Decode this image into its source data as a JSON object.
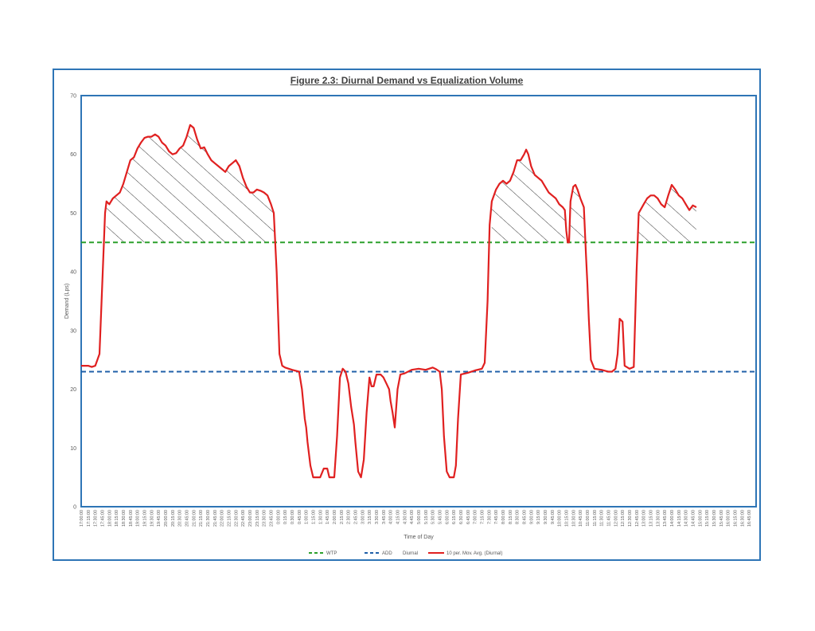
{
  "chart_data": {
    "type": "line",
    "title": "Figure 2.3: Diurnal Demand vs Equalization Volume",
    "xlabel": "Time of Day",
    "ylabel": "Demand (Lps)",
    "ylim": [
      0,
      70
    ],
    "yticks": [
      0,
      10,
      20,
      30,
      40,
      50,
      60,
      70
    ],
    "grid": false,
    "legend_position": "bottom",
    "x_start": "17:00:00",
    "x_step_minutes": 15,
    "x_count": 96,
    "legend": [
      {
        "key": "wtp",
        "label": "WTP",
        "style": "dashed",
        "color": "#2ca02c"
      },
      {
        "key": "add",
        "label": "ADD",
        "style": "dashed",
        "color": "#2060a8"
      },
      {
        "key": "diurnal",
        "label": "Diurnal",
        "style": "hatch",
        "color": "#000000"
      },
      {
        "key": "avg",
        "label": "10 per. Mov. Avg. (Diurnal)",
        "style": "solid",
        "color": "#e02020"
      }
    ],
    "series": [
      {
        "name": "WTP",
        "constant": 45
      },
      {
        "name": "ADD",
        "constant": 23
      },
      {
        "name": "10 per. Mov. Avg. (Diurnal)",
        "points": [
          [
            0,
            24
          ],
          [
            1,
            24
          ],
          [
            1.5,
            23.8
          ],
          [
            2,
            24
          ],
          [
            2.6,
            26
          ],
          [
            3,
            38
          ],
          [
            3.4,
            50
          ],
          [
            3.6,
            52
          ],
          [
            4,
            51.5
          ],
          [
            4.5,
            52.5
          ],
          [
            5,
            53
          ],
          [
            5.5,
            53.5
          ],
          [
            6,
            55
          ],
          [
            6.5,
            57
          ],
          [
            7,
            59
          ],
          [
            7.5,
            59.5
          ],
          [
            8,
            61
          ],
          [
            8.5,
            62
          ],
          [
            9,
            62.8
          ],
          [
            9.5,
            63
          ],
          [
            10,
            63
          ],
          [
            10.5,
            63.4
          ],
          [
            11,
            63
          ],
          [
            11.5,
            62
          ],
          [
            12,
            61.5
          ],
          [
            12.5,
            60.5
          ],
          [
            13,
            60
          ],
          [
            13.5,
            60.2
          ],
          [
            14,
            61
          ],
          [
            14.5,
            61.5
          ],
          [
            15,
            63
          ],
          [
            15.5,
            65
          ],
          [
            16,
            64.5
          ],
          [
            16.5,
            62.5
          ],
          [
            17,
            61
          ],
          [
            17.5,
            61.2
          ],
          [
            18,
            60
          ],
          [
            18.5,
            59
          ],
          [
            19,
            58.5
          ],
          [
            19.5,
            58
          ],
          [
            20,
            57.5
          ],
          [
            20.5,
            57
          ],
          [
            21,
            58
          ],
          [
            21.5,
            58.5
          ],
          [
            22,
            59
          ],
          [
            22.5,
            58
          ],
          [
            23,
            56
          ],
          [
            23.5,
            54.5
          ],
          [
            24,
            53.5
          ],
          [
            24.5,
            53.5
          ],
          [
            25,
            54
          ],
          [
            25.5,
            53.8
          ],
          [
            26,
            53.5
          ],
          [
            26.5,
            53
          ],
          [
            27,
            51.5
          ],
          [
            27.4,
            50
          ],
          [
            27.8,
            40
          ],
          [
            28.2,
            26
          ],
          [
            28.6,
            24
          ],
          [
            29,
            23.7
          ],
          [
            30,
            23.3
          ],
          [
            31,
            23
          ],
          [
            31.4,
            20
          ],
          [
            31.8,
            15
          ],
          [
            32,
            13.5
          ],
          [
            32.2,
            11
          ],
          [
            32.6,
            7
          ],
          [
            33,
            5
          ],
          [
            34,
            5
          ],
          [
            34.5,
            6.5
          ],
          [
            35,
            6.5
          ],
          [
            35.3,
            5
          ],
          [
            36,
            5
          ],
          [
            36.4,
            12
          ],
          [
            36.8,
            22
          ],
          [
            37.2,
            23.5
          ],
          [
            37.6,
            23
          ],
          [
            38,
            21
          ],
          [
            38.4,
            17
          ],
          [
            38.8,
            14
          ],
          [
            39,
            11
          ],
          [
            39.4,
            6
          ],
          [
            39.8,
            5
          ],
          [
            40.2,
            8
          ],
          [
            40.6,
            16
          ],
          [
            41,
            22
          ],
          [
            41.3,
            20.5
          ],
          [
            41.6,
            20.5
          ],
          [
            42,
            22.5
          ],
          [
            42.6,
            22.5
          ],
          [
            43,
            22
          ],
          [
            43.4,
            21
          ],
          [
            43.8,
            20
          ],
          [
            44,
            18
          ],
          [
            44.3,
            16
          ],
          [
            44.6,
            13.5
          ],
          [
            45,
            20
          ],
          [
            45.4,
            22.5
          ],
          [
            46,
            22.7
          ],
          [
            47,
            23.3
          ],
          [
            48,
            23.5
          ],
          [
            49,
            23.3
          ],
          [
            50,
            23.7
          ],
          [
            50.5,
            23.4
          ],
          [
            51,
            23
          ],
          [
            51.3,
            20
          ],
          [
            51.6,
            12
          ],
          [
            52,
            6
          ],
          [
            52.4,
            5
          ],
          [
            53,
            5
          ],
          [
            53.3,
            7
          ],
          [
            53.6,
            15
          ],
          [
            54,
            22.5
          ],
          [
            55,
            22.8
          ],
          [
            56,
            23.2
          ],
          [
            57,
            23.5
          ],
          [
            57.4,
            24.5
          ],
          [
            57.8,
            35
          ],
          [
            58.1,
            48
          ],
          [
            58.4,
            52
          ],
          [
            59,
            54
          ],
          [
            59.5,
            55
          ],
          [
            60,
            55.5
          ],
          [
            60.5,
            55
          ],
          [
            61,
            55.5
          ],
          [
            61.5,
            57
          ],
          [
            62,
            59
          ],
          [
            62.5,
            59
          ],
          [
            63,
            60
          ],
          [
            63.3,
            60.8
          ],
          [
            63.6,
            60
          ],
          [
            64,
            58
          ],
          [
            64.5,
            56.5
          ],
          [
            65,
            56
          ],
          [
            65.5,
            55.5
          ],
          [
            66,
            54.5
          ],
          [
            66.5,
            53.5
          ],
          [
            67,
            53
          ],
          [
            67.5,
            52.5
          ],
          [
            68,
            51.5
          ],
          [
            68.5,
            51
          ],
          [
            68.8,
            50.5
          ],
          [
            69,
            47
          ],
          [
            69.2,
            45
          ],
          [
            69.4,
            45
          ],
          [
            69.6,
            52
          ],
          [
            70,
            54.5
          ],
          [
            70.3,
            54.8
          ],
          [
            70.6,
            54
          ],
          [
            71,
            52.5
          ],
          [
            71.5,
            51
          ],
          [
            71.8,
            43
          ],
          [
            72,
            38
          ],
          [
            72.2,
            32
          ],
          [
            72.5,
            25
          ],
          [
            73,
            23.5
          ],
          [
            74,
            23.3
          ],
          [
            75,
            23
          ],
          [
            75.5,
            23
          ],
          [
            76,
            23.5
          ],
          [
            76.3,
            26
          ],
          [
            76.6,
            32
          ],
          [
            77,
            31.5
          ],
          [
            77.3,
            24
          ],
          [
            78,
            23.5
          ],
          [
            78.6,
            23.8
          ],
          [
            79,
            40
          ],
          [
            79.3,
            50
          ],
          [
            80,
            51.5
          ],
          [
            80.5,
            52.5
          ],
          [
            81,
            53
          ],
          [
            81.5,
            53
          ],
          [
            82,
            52.5
          ],
          [
            82.5,
            51.5
          ],
          [
            83,
            51
          ],
          [
            83.5,
            53
          ],
          [
            84,
            54.8
          ],
          [
            84.5,
            54
          ],
          [
            85,
            53
          ],
          [
            85.5,
            52.5
          ],
          [
            86,
            51.5
          ],
          [
            86.5,
            50.5
          ],
          [
            87,
            51.3
          ],
          [
            87.5,
            51
          ]
        ]
      }
    ],
    "hatch_segments": [
      [
        3.6,
        27.4
      ],
      [
        58.4,
        68.8
      ],
      [
        69.6,
        71.5
      ],
      [
        79.3,
        87.5
      ]
    ]
  }
}
